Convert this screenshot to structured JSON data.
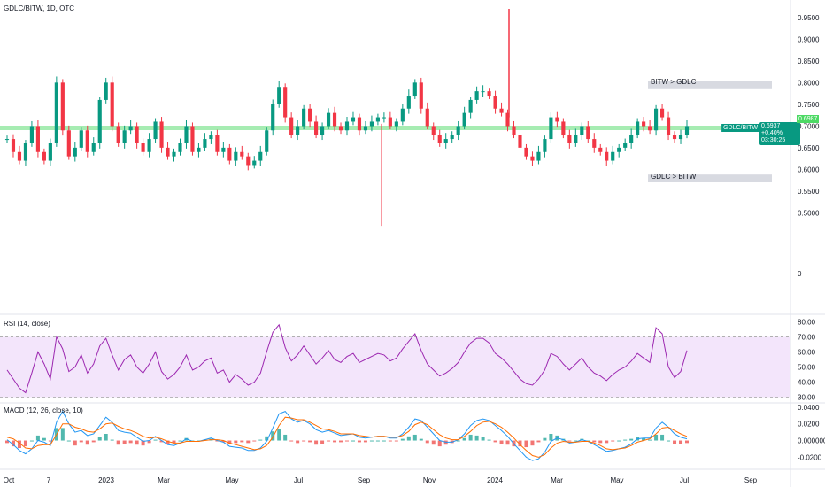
{
  "header": {
    "title": "GDLC/BITW, 1D, OTC"
  },
  "colors": {
    "up": "#089981",
    "down": "#f23645",
    "hline": "#4cd964",
    "rsi_line": "#9c27b0",
    "rsi_band": "#f3e5fb",
    "macd_line": "#2196f3",
    "signal_line": "#ff6d00",
    "hist_up": "#26a69a",
    "hist_down": "#ef5350",
    "zone": "#d1d4dc",
    "badge": "#089981"
  },
  "annotations": {
    "bitw_gt_gdlc": "BITW > GDLC",
    "gdlc_gt_bitw": "GDLC > BITW",
    "hline_value": 0.6987,
    "bitw_zone_value": 0.795,
    "gdlc_zone_value": 0.58
  },
  "last_price": {
    "symbol": "GDLC/BITW",
    "price": "0.6937",
    "change": "+0.40%",
    "countdown": "03:30:25",
    "level_label": "0.6987"
  },
  "chart_data": [
    {
      "type": "candlestick",
      "title": "GDLC/BITW, 1D, OTC",
      "x_ticks": [
        "Oct",
        "7",
        "2023",
        "Mar",
        "May",
        "Jul",
        "Sep",
        "Nov",
        "2024",
        "Mar",
        "May",
        "Jul",
        "Sep"
      ],
      "y_ticks": [
        "0.9500",
        "0.9000",
        "0.8500",
        "0.8000",
        "0.7500",
        "0.7000",
        "0.6500",
        "0.6000",
        "0.5500",
        "0.5000"
      ],
      "extra_y_tick": "0",
      "ylim": [
        0.46,
        0.97
      ],
      "series_close": [
        0.67,
        0.64,
        0.62,
        0.66,
        0.7,
        0.64,
        0.62,
        0.66,
        0.8,
        0.69,
        0.63,
        0.65,
        0.69,
        0.64,
        0.66,
        0.76,
        0.8,
        0.7,
        0.66,
        0.69,
        0.7,
        0.66,
        0.64,
        0.67,
        0.71,
        0.65,
        0.63,
        0.64,
        0.66,
        0.7,
        0.64,
        0.65,
        0.67,
        0.68,
        0.64,
        0.65,
        0.62,
        0.64,
        0.63,
        0.61,
        0.62,
        0.64,
        0.69,
        0.75,
        0.79,
        0.72,
        0.68,
        0.7,
        0.74,
        0.71,
        0.68,
        0.7,
        0.73,
        0.7,
        0.69,
        0.71,
        0.72,
        0.69,
        0.7,
        0.71,
        0.72,
        0.72,
        0.7,
        0.71,
        0.74,
        0.77,
        0.8,
        0.74,
        0.7,
        0.68,
        0.66,
        0.67,
        0.68,
        0.7,
        0.73,
        0.76,
        0.78,
        0.78,
        0.77,
        0.74,
        0.73,
        0.7,
        0.68,
        0.65,
        0.63,
        0.62,
        0.64,
        0.67,
        0.72,
        0.71,
        0.68,
        0.66,
        0.68,
        0.7,
        0.67,
        0.65,
        0.64,
        0.62,
        0.64,
        0.65,
        0.66,
        0.68,
        0.71,
        0.7,
        0.69,
        0.74,
        0.72,
        0.68,
        0.67,
        0.68,
        0.7
      ]
    },
    {
      "type": "line",
      "title": "RSI (14, close)",
      "y_ticks": [
        "80.00",
        "70.00",
        "60.00",
        "50.00",
        "40.00",
        "30.00"
      ],
      "ylim": [
        28,
        82
      ],
      "band": [
        30,
        70
      ],
      "series": [
        {
          "name": "RSI",
          "values": [
            48,
            42,
            36,
            33,
            46,
            60,
            52,
            42,
            70,
            62,
            47,
            50,
            58,
            46,
            52,
            64,
            69,
            58,
            48,
            55,
            58,
            50,
            46,
            52,
            60,
            47,
            42,
            45,
            50,
            58,
            48,
            50,
            54,
            56,
            46,
            48,
            40,
            45,
            42,
            38,
            40,
            46,
            60,
            73,
            78,
            63,
            54,
            58,
            64,
            58,
            52,
            56,
            61,
            55,
            53,
            57,
            59,
            53,
            55,
            57,
            59,
            58,
            54,
            56,
            62,
            67,
            72,
            61,
            52,
            48,
            44,
            46,
            49,
            53,
            60,
            66,
            69,
            69,
            66,
            59,
            56,
            52,
            47,
            42,
            39,
            38,
            42,
            48,
            59,
            57,
            52,
            48,
            52,
            56,
            50,
            46,
            44,
            41,
            45,
            48,
            50,
            54,
            59,
            56,
            53,
            76,
            72,
            50,
            43,
            47,
            61
          ]
        }
      ]
    },
    {
      "type": "line",
      "title": "MACD (12, 26, close, 10)",
      "y_ticks": [
        "0.0400",
        "0.0200",
        "0.000000",
        "-0.0200"
      ],
      "ylim": [
        -0.026,
        0.042
      ],
      "series": [
        {
          "name": "MACD",
          "values": [
            0.001,
            -0.005,
            -0.012,
            -0.016,
            -0.01,
            0.0,
            -0.002,
            -0.006,
            0.022,
            0.035,
            0.02,
            0.01,
            0.012,
            0.006,
            0.008,
            0.018,
            0.028,
            0.022,
            0.012,
            0.01,
            0.009,
            0.004,
            -0.001,
            0.0,
            0.005,
            0.0,
            -0.005,
            -0.006,
            -0.003,
            0.002,
            -0.001,
            -0.001,
            0.001,
            0.003,
            0.0,
            -0.002,
            -0.007,
            -0.008,
            -0.009,
            -0.012,
            -0.012,
            -0.009,
            -0.001,
            0.015,
            0.032,
            0.035,
            0.026,
            0.022,
            0.024,
            0.02,
            0.013,
            0.01,
            0.012,
            0.009,
            0.006,
            0.007,
            0.008,
            0.004,
            0.003,
            0.004,
            0.005,
            0.005,
            0.003,
            0.003,
            0.008,
            0.016,
            0.026,
            0.024,
            0.016,
            0.008,
            0.0,
            -0.002,
            -0.002,
            0.001,
            0.008,
            0.018,
            0.024,
            0.026,
            0.024,
            0.018,
            0.012,
            0.005,
            -0.004,
            -0.012,
            -0.02,
            -0.024,
            -0.022,
            -0.014,
            -0.001,
            0.003,
            0.001,
            -0.003,
            -0.002,
            0.001,
            -0.001,
            -0.005,
            -0.009,
            -0.013,
            -0.012,
            -0.01,
            -0.008,
            -0.004,
            0.002,
            0.003,
            0.003,
            0.015,
            0.022,
            0.016,
            0.008,
            0.004,
            0.002
          ]
        },
        {
          "name": "Signal",
          "values": [
            0.004,
            0.002,
            -0.003,
            -0.009,
            -0.01,
            -0.006,
            -0.005,
            -0.005,
            0.007,
            0.02,
            0.02,
            0.016,
            0.014,
            0.011,
            0.01,
            0.014,
            0.02,
            0.021,
            0.017,
            0.014,
            0.012,
            0.009,
            0.005,
            0.003,
            0.004,
            0.002,
            -0.001,
            -0.003,
            -0.003,
            -0.001,
            -0.001,
            -0.001,
            0.0,
            0.001,
            0.001,
            0.0,
            -0.003,
            -0.005,
            -0.007,
            -0.009,
            -0.011,
            -0.01,
            -0.006,
            0.004,
            0.018,
            0.028,
            0.027,
            0.025,
            0.025,
            0.022,
            0.018,
            0.014,
            0.013,
            0.011,
            0.008,
            0.008,
            0.008,
            0.006,
            0.005,
            0.004,
            0.005,
            0.005,
            0.004,
            0.004,
            0.006,
            0.011,
            0.019,
            0.022,
            0.019,
            0.013,
            0.007,
            0.003,
            0.001,
            0.001,
            0.005,
            0.011,
            0.018,
            0.022,
            0.023,
            0.02,
            0.016,
            0.01,
            0.003,
            -0.005,
            -0.012,
            -0.018,
            -0.02,
            -0.017,
            -0.009,
            -0.003,
            -0.001,
            -0.002,
            -0.002,
            -0.001,
            -0.001,
            -0.003,
            -0.006,
            -0.01,
            -0.011,
            -0.01,
            -0.009,
            -0.006,
            -0.002,
            0.0,
            0.002,
            0.008,
            0.015,
            0.016,
            0.012,
            0.008,
            0.005
          ]
        }
      ]
    }
  ]
}
